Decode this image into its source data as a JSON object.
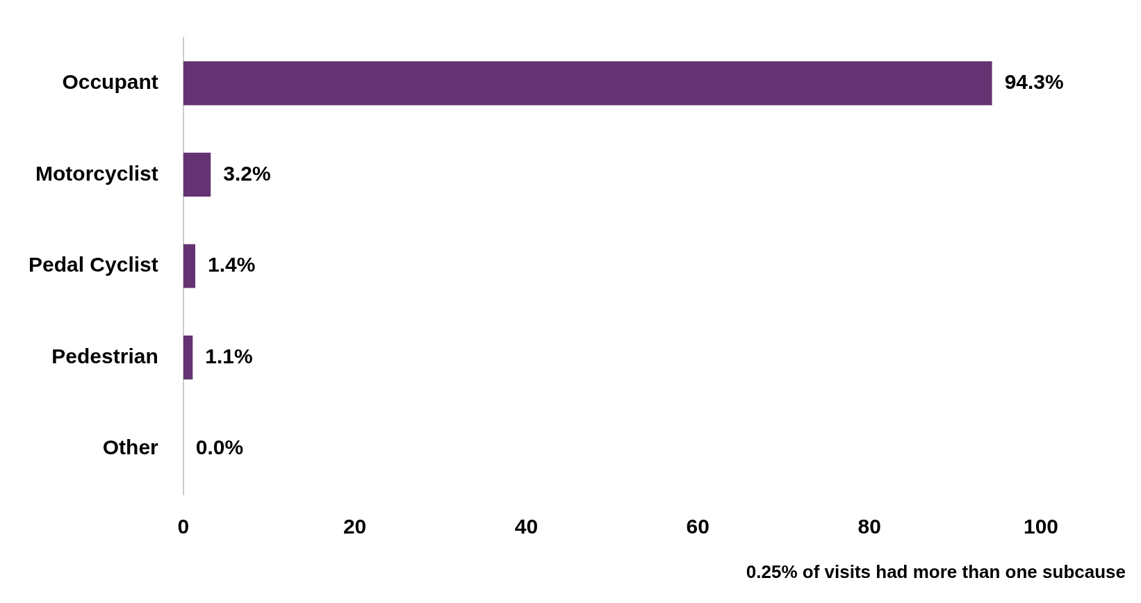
{
  "chart_data": {
    "type": "bar",
    "orientation": "horizontal",
    "categories": [
      "Occupant",
      "Motorcyclist",
      "Pedal Cyclist",
      "Pedestrian",
      "Other"
    ],
    "values": [
      94.3,
      3.2,
      1.4,
      1.1,
      0.0
    ],
    "value_labels": [
      "94.3%",
      "3.2%",
      "1.4%",
      "1.1%",
      "0.0%"
    ],
    "color": "#663372",
    "xlim": [
      0,
      100
    ],
    "xticks": [
      0,
      20,
      40,
      60,
      80,
      100
    ],
    "grid": false,
    "legend": false,
    "annotations": [
      "0.25% of visits had more than one subcause"
    ]
  }
}
